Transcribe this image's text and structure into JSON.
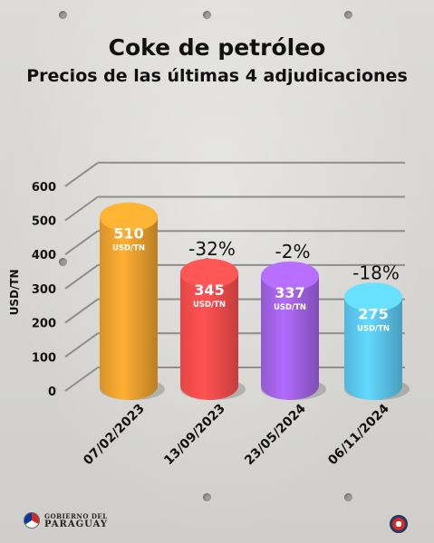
{
  "header": {
    "title": "Coke de petróleo",
    "subtitle": "Precios de las últimas 4 adjudicaciones"
  },
  "chart_data": {
    "type": "bar",
    "ylabel": "USD/TN",
    "ylim": [
      0,
      600
    ],
    "yticks": [
      0,
      100,
      200,
      300,
      400,
      500,
      600
    ],
    "categories": [
      "07/02/2023",
      "13/09/2023",
      "23/05/2024",
      "06/11/2024"
    ],
    "values": [
      510,
      345,
      337,
      275
    ],
    "value_unit": "USD/TN",
    "changes": [
      "",
      "-32%",
      "-2%",
      "-18%"
    ],
    "colors": [
      "#f0a22e",
      "#ff4d4d",
      "#a463e8",
      "#5cc9f4"
    ],
    "grid": true
  },
  "footer": {
    "logo_line1": "GOBIERNO DEL",
    "logo_line2": "PARAGUAY"
  }
}
